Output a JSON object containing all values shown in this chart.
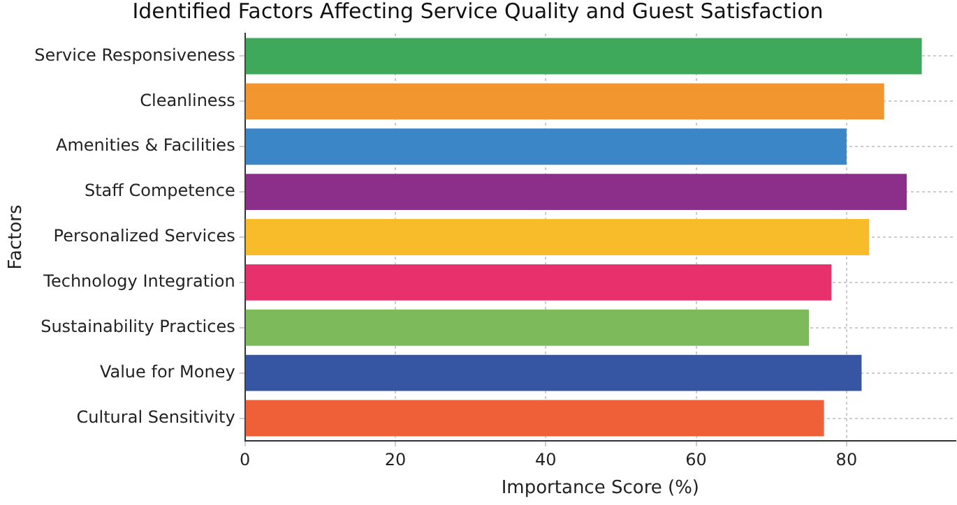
{
  "chart_data": {
    "type": "bar",
    "orientation": "horizontal",
    "title": "Identified Factors Affecting Service Quality and Guest Satisfaction",
    "xlabel": "Importance Score (%)",
    "ylabel": "Factors",
    "categories": [
      "Service Responsiveness",
      "Cleanliness",
      "Amenities & Facilities",
      "Staff Competence",
      "Personalized Services",
      "Technology Integration",
      "Sustainability Practices",
      "Value for Money",
      "Cultural Sensitivity"
    ],
    "values": [
      90,
      85,
      80,
      88,
      83,
      78,
      75,
      82,
      77
    ],
    "colors": [
      "#3fa95b",
      "#f2962f",
      "#3a86c6",
      "#8b2f8a",
      "#f8bc2a",
      "#e8306c",
      "#7cba5c",
      "#3656a3",
      "#ef6039"
    ],
    "xlim": [
      0,
      94.5
    ],
    "xticks": [
      0,
      20,
      40,
      60,
      80
    ],
    "grid": true,
    "legend": false
  }
}
